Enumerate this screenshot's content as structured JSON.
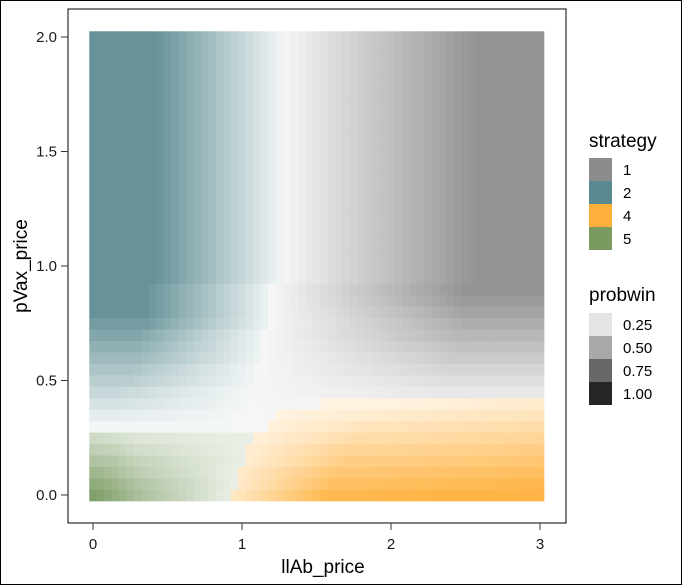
{
  "chart_data": {
    "type": "heatmap",
    "xlabel": "llAb_price",
    "ylabel": "pVax_price",
    "xlim": [
      -0.1,
      3.1
    ],
    "ylim": [
      -0.1,
      2.1
    ],
    "x_ticks": [
      {
        "value": 0,
        "label": "0"
      },
      {
        "value": 1,
        "label": "1"
      },
      {
        "value": 2,
        "label": "2"
      },
      {
        "value": 3,
        "label": "3"
      }
    ],
    "y_ticks": [
      {
        "value": 0.0,
        "label": "0.0"
      },
      {
        "value": 0.5,
        "label": "0.5"
      },
      {
        "value": 1.0,
        "label": "1.0"
      },
      {
        "value": 1.5,
        "label": "1.5"
      },
      {
        "value": 2.0,
        "label": "2.0"
      }
    ],
    "grid_x": {
      "start": 0,
      "end": 3,
      "step": 0.05
    },
    "grid_y": {
      "start": 0,
      "end": 2,
      "step": 0.05
    },
    "regions": [
      {
        "strategy": "5",
        "x_range": [
          0,
          0.95
        ],
        "y_range": [
          0,
          0.3
        ]
      },
      {
        "strategy": "4",
        "x_range": [
          0.95,
          3
        ],
        "y_range": [
          0,
          0.4
        ],
        "boundary": "stepped"
      },
      {
        "strategy": "2",
        "x_range": [
          0,
          1.25
        ],
        "y_range": [
          0.3,
          2
        ],
        "boundary": "stepped"
      },
      {
        "strategy": "1",
        "x_range": [
          1.25,
          3
        ],
        "y_range": [
          0.4,
          2
        ],
        "boundary": "stepped"
      }
    ],
    "fill_encoding": "color = strategy, transparency = probwin (low near boundaries)",
    "legend": {
      "position": "right",
      "strategy": {
        "title": "strategy",
        "items": [
          {
            "label": "1",
            "color": "#8c8c8c"
          },
          {
            "label": "2",
            "color": "#5a8a90"
          },
          {
            "label": "4",
            "color": "#ffb03b"
          },
          {
            "label": "5",
            "color": "#7a9a62"
          }
        ]
      },
      "probwin": {
        "title": "probwin",
        "items": [
          {
            "label": "0.25",
            "color": "#e4e4e4"
          },
          {
            "label": "0.50",
            "color": "#a8a8a8"
          },
          {
            "label": "0.75",
            "color": "#686868"
          },
          {
            "label": "1.00",
            "color": "#262626"
          }
        ]
      }
    },
    "grid": false
  }
}
